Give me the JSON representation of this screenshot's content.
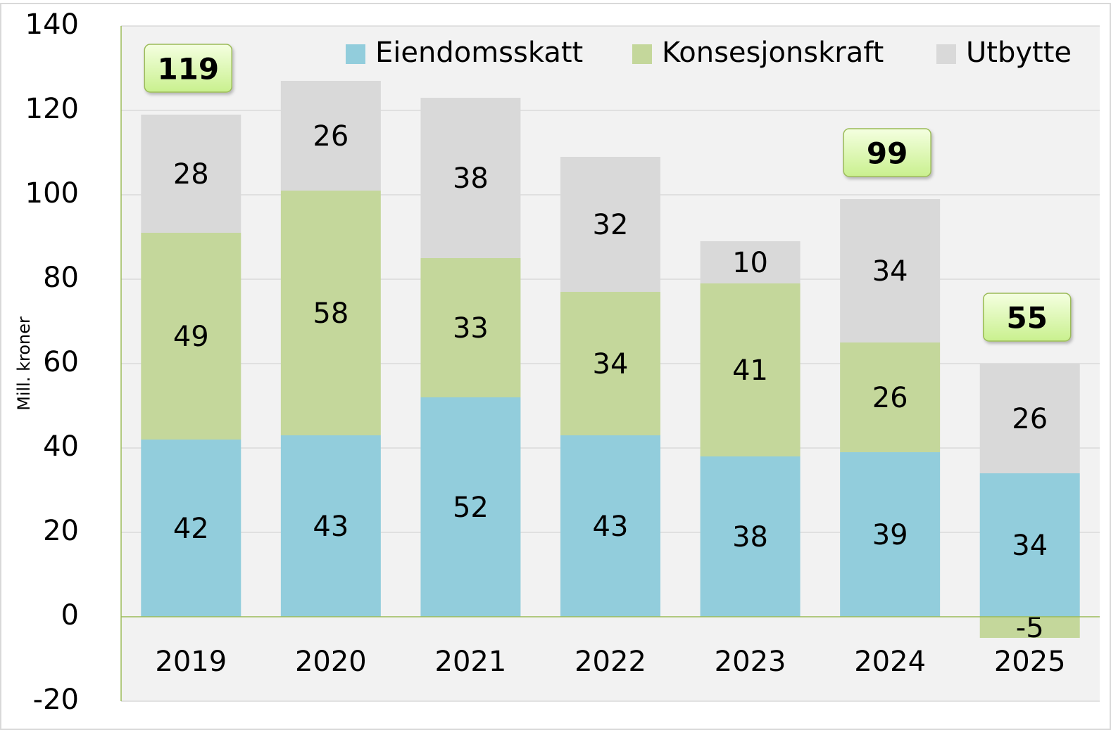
{
  "chart_data": {
    "type": "stacked_bar",
    "y_label": "Mill. kroner",
    "categories": [
      "2019",
      "2020",
      "2021",
      "2022",
      "2023",
      "2024",
      "2025"
    ],
    "series": [
      {
        "name": "Eiendomsskatt",
        "color": "#92cddc",
        "values": [
          42,
          43,
          52,
          43,
          38,
          39,
          34
        ]
      },
      {
        "name": "Konsesjonskraft",
        "color": "#c4d79b",
        "values": [
          49,
          58,
          33,
          34,
          41,
          26,
          -5
        ]
      },
      {
        "name": "Utbytte",
        "color": "#d9d9d9",
        "values": [
          28,
          26,
          38,
          32,
          10,
          34,
          26
        ]
      }
    ],
    "annotations": [
      {
        "x": "2019",
        "value": 119
      },
      {
        "x": "2024",
        "value": 99
      },
      {
        "x": "2025",
        "value": 55
      }
    ],
    "ylim": [
      -20,
      140
    ],
    "yticks": [
      -20,
      0,
      20,
      40,
      60,
      80,
      100,
      120,
      140
    ],
    "grid": true,
    "legend": "top-right",
    "negative_color": "#ff0000"
  }
}
